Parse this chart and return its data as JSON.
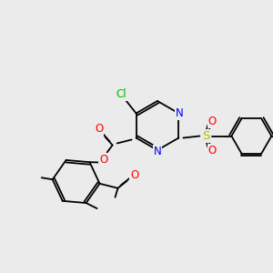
{
  "background_color": "#ebebeb",
  "bond_color": "#000000",
  "atom_colors": {
    "Cl": "#00bb00",
    "N": "#0000ee",
    "O": "#ff0000",
    "S": "#bbbb00",
    "C": "#000000"
  },
  "figsize": [
    3.0,
    3.0
  ],
  "dpi": 100
}
